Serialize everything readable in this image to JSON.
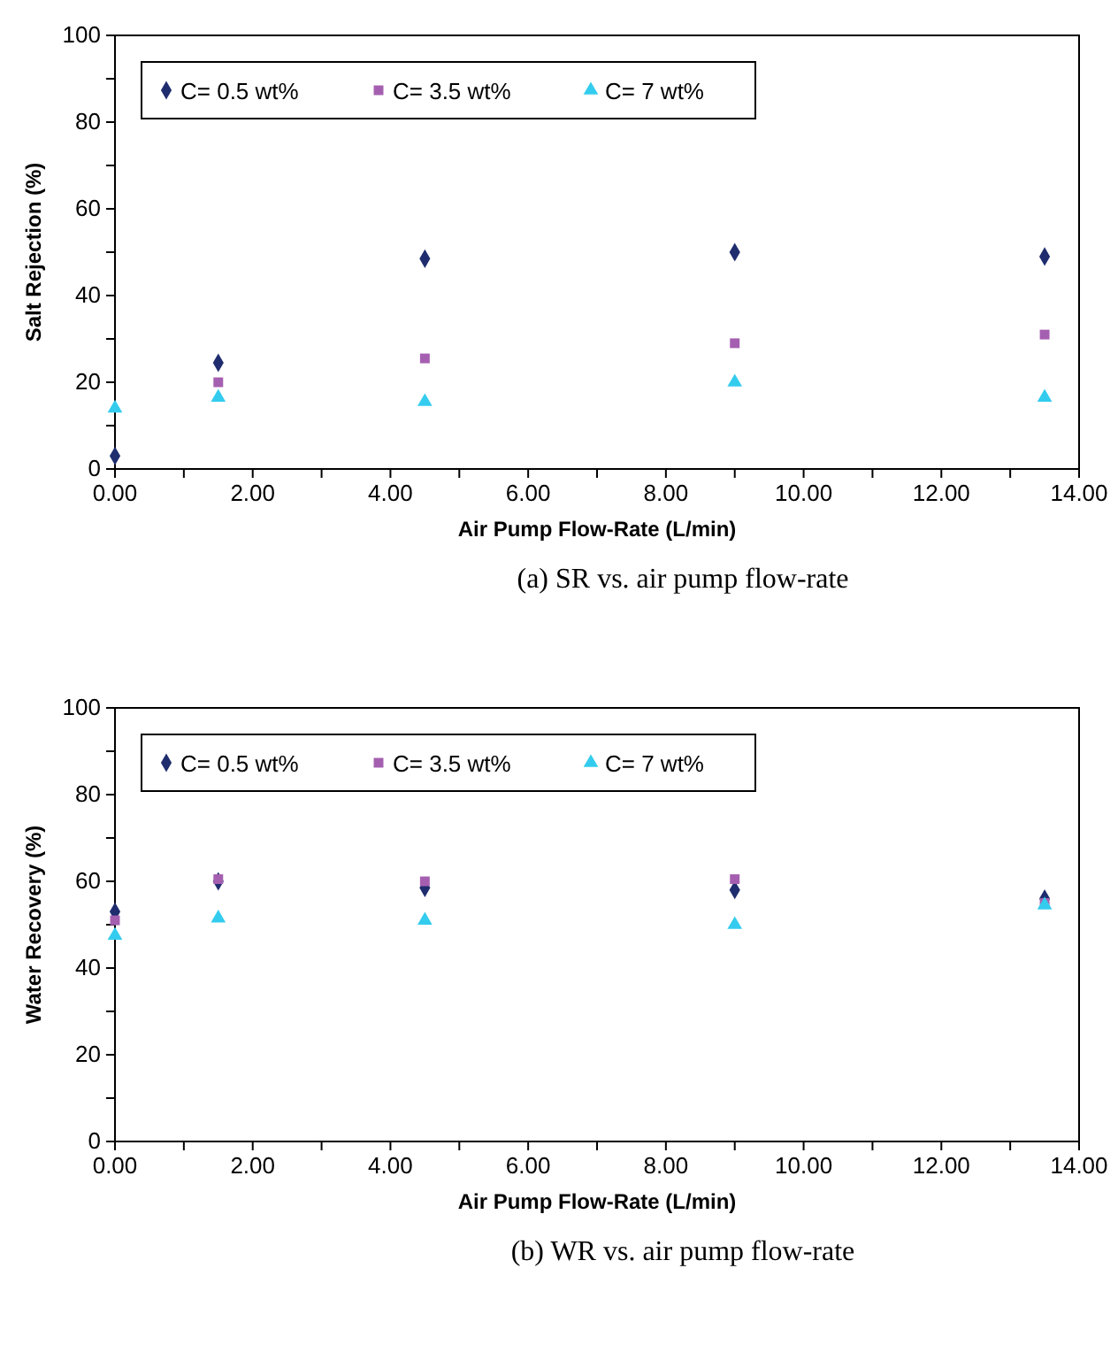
{
  "chart_data": [
    {
      "type": "scatter",
      "xlabel": "Air Pump Flow-Rate (L/min)",
      "ylabel": "Salt Rejection (%)",
      "annotations": [
        "(a) SR vs. air pump flow-rate"
      ],
      "legend": "top left",
      "grid": false,
      "xlim": [
        0,
        14
      ],
      "ylim": [
        0,
        100
      ],
      "xticks": [
        {
          "value": 0,
          "label": "0.00"
        },
        {
          "value": 1,
          "label": null
        },
        {
          "value": 2,
          "label": "2.00"
        },
        {
          "value": 3,
          "label": null
        },
        {
          "value": 4,
          "label": "4.00"
        },
        {
          "value": 5,
          "label": null
        },
        {
          "value": 6,
          "label": "6.00"
        },
        {
          "value": 7,
          "label": null
        },
        {
          "value": 8,
          "label": "8.00"
        },
        {
          "value": 9,
          "label": null
        },
        {
          "value": 10,
          "label": "10.00"
        },
        {
          "value": 11,
          "label": null
        },
        {
          "value": 12,
          "label": "12.00"
        },
        {
          "value": 13,
          "label": null
        },
        {
          "value": 14,
          "label": "14.00"
        }
      ],
      "yticks": [
        0,
        {
          "value": 10,
          "label": null
        },
        20,
        {
          "value": 30,
          "label": null
        },
        40,
        {
          "value": 50,
          "label": null
        },
        60,
        {
          "value": 70,
          "label": null
        },
        80,
        {
          "value": 90,
          "label": null
        },
        100
      ],
      "x": [
        0,
        1.5,
        4.5,
        9,
        13.5
      ],
      "series": [
        {
          "name": "C= 0.5 wt%",
          "color": "#1f2d6e",
          "marker": "diamond",
          "values": [
            3,
            24.5,
            48.5,
            50,
            49
          ]
        },
        {
          "name": "C= 3.5 wt%",
          "color": "#a55fb0",
          "marker": "square",
          "values": [
            null,
            20,
            25.5,
            29,
            31
          ]
        },
        {
          "name": "C= 7 wt%",
          "color": "#33ccee",
          "marker": "triangle",
          "values": [
            14,
            16.5,
            15.5,
            20,
            16.5
          ]
        }
      ]
    },
    {
      "type": "scatter",
      "xlabel": "Air Pump Flow-Rate (L/min)",
      "ylabel": "Water Recovery (%)",
      "annotations": [
        "(b) WR vs. air pump flow-rate"
      ],
      "legend": "top left",
      "grid": false,
      "xlim": [
        0,
        14
      ],
      "ylim": [
        0,
        100
      ],
      "xticks": [
        {
          "value": 0,
          "label": "0.00"
        },
        {
          "value": 1,
          "label": null
        },
        {
          "value": 2,
          "label": "2.00"
        },
        {
          "value": 3,
          "label": null
        },
        {
          "value": 4,
          "label": "4.00"
        },
        {
          "value": 5,
          "label": null
        },
        {
          "value": 6,
          "label": "6.00"
        },
        {
          "value": 7,
          "label": null
        },
        {
          "value": 8,
          "label": "8.00"
        },
        {
          "value": 9,
          "label": null
        },
        {
          "value": 10,
          "label": "10.00"
        },
        {
          "value": 11,
          "label": null
        },
        {
          "value": 12,
          "label": "12.00"
        },
        {
          "value": 13,
          "label": null
        },
        {
          "value": 14,
          "label": "14.00"
        }
      ],
      "yticks": [
        0,
        {
          "value": 10,
          "label": null
        },
        20,
        {
          "value": 30,
          "label": null
        },
        40,
        {
          "value": 50,
          "label": null
        },
        60,
        {
          "value": 70,
          "label": null
        },
        80,
        {
          "value": 90,
          "label": null
        },
        100
      ],
      "x": [
        0,
        1.5,
        4.5,
        9,
        13.5
      ],
      "series": [
        {
          "name": "C= 0.5 wt%",
          "color": "#1f2d6e",
          "marker": "diamond",
          "values": [
            53,
            60,
            58.5,
            58,
            56
          ]
        },
        {
          "name": "C= 3.5 wt%",
          "color": "#a55fb0",
          "marker": "square",
          "values": [
            51,
            60.5,
            60,
            60.5,
            55
          ]
        },
        {
          "name": "C= 7 wt%",
          "color": "#33ccee",
          "marker": "triangle",
          "values": [
            47.5,
            51.5,
            51,
            50,
            54.5
          ]
        }
      ]
    }
  ]
}
